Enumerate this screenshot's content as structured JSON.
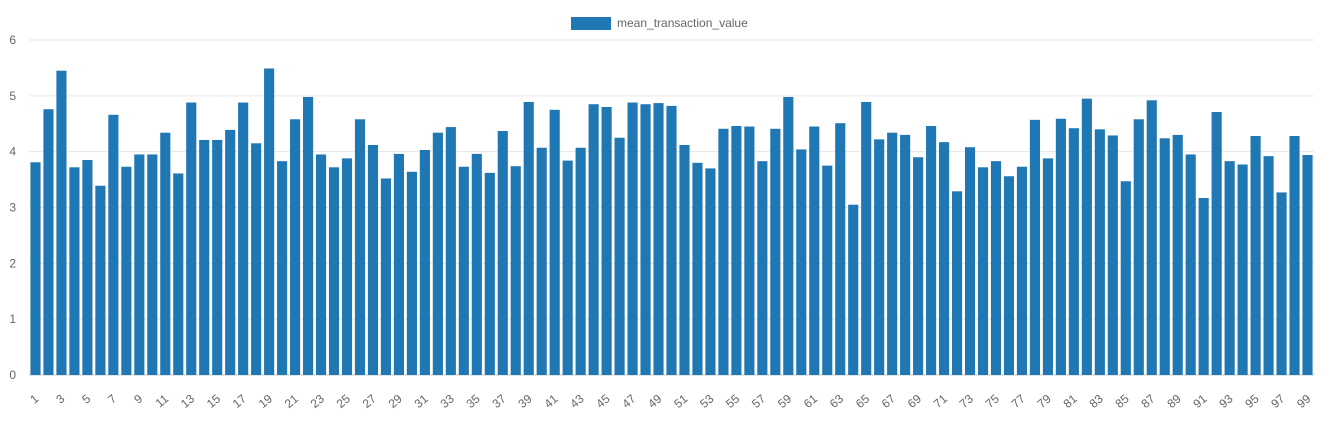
{
  "chart_data": {
    "type": "bar",
    "legend": "top",
    "grid": true,
    "color": "#1f77b4",
    "series": [
      {
        "name": "mean_transaction_value",
        "values": [
          3.81,
          4.76,
          5.45,
          3.72,
          3.85,
          3.39,
          4.66,
          3.73,
          3.95,
          3.95,
          4.34,
          3.61,
          4.88,
          4.21,
          4.21,
          4.39,
          4.88,
          4.15,
          5.49,
          3.83,
          4.58,
          4.98,
          3.95,
          3.72,
          3.88,
          4.58,
          4.12,
          3.52,
          3.96,
          3.64,
          4.03,
          4.34,
          4.44,
          3.73,
          3.96,
          3.62,
          4.37,
          3.74,
          4.89,
          4.07,
          4.75,
          3.84,
          4.07,
          4.85,
          4.8,
          4.25,
          4.88,
          4.85,
          4.87,
          4.82,
          4.12,
          3.8,
          3.7,
          4.41,
          4.46,
          4.45,
          3.83,
          4.41,
          4.98,
          4.04,
          4.45,
          3.75,
          4.51,
          3.05,
          4.89,
          4.22,
          4.34,
          4.3,
          3.9,
          4.46,
          4.17,
          3.29,
          4.08,
          3.72,
          3.83,
          3.56,
          3.73,
          4.57,
          3.88,
          4.59,
          4.42,
          4.95,
          4.4,
          4.29,
          3.47,
          4.58,
          4.92,
          4.24,
          4.3,
          3.95,
          3.17,
          4.71,
          3.83,
          3.77,
          4.28,
          3.92,
          3.27,
          4.28,
          3.94
        ]
      }
    ],
    "x": [
      1,
      2,
      3,
      4,
      5,
      6,
      7,
      8,
      9,
      10,
      11,
      12,
      13,
      14,
      15,
      16,
      17,
      18,
      19,
      20,
      21,
      22,
      23,
      24,
      25,
      26,
      27,
      28,
      29,
      30,
      31,
      32,
      33,
      34,
      35,
      36,
      37,
      38,
      39,
      40,
      41,
      42,
      43,
      44,
      45,
      46,
      47,
      48,
      49,
      50,
      51,
      52,
      53,
      54,
      55,
      56,
      57,
      58,
      59,
      60,
      61,
      62,
      63,
      64,
      65,
      66,
      67,
      68,
      69,
      70,
      71,
      72,
      73,
      74,
      75,
      76,
      77,
      78,
      79,
      80,
      81,
      82,
      83,
      84,
      85,
      86,
      87,
      88,
      89,
      90,
      91,
      92,
      93,
      94,
      95,
      96,
      97,
      98,
      99
    ],
    "x_tick_labels": [
      "1",
      "3",
      "5",
      "7",
      "9",
      "11",
      "13",
      "15",
      "17",
      "19",
      "21",
      "23",
      "25",
      "27",
      "29",
      "31",
      "33",
      "35",
      "37",
      "39",
      "41",
      "43",
      "45",
      "47",
      "49",
      "51",
      "53",
      "55",
      "57",
      "59",
      "61",
      "63",
      "65",
      "67",
      "69",
      "71",
      "73",
      "75",
      "77",
      "79",
      "81",
      "83",
      "85",
      "87",
      "89",
      "91",
      "93",
      "95",
      "97",
      "99"
    ],
    "ylim": [
      0,
      6
    ],
    "y_ticks": [
      "0",
      "1",
      "2",
      "3",
      "4",
      "5",
      "6"
    ]
  }
}
